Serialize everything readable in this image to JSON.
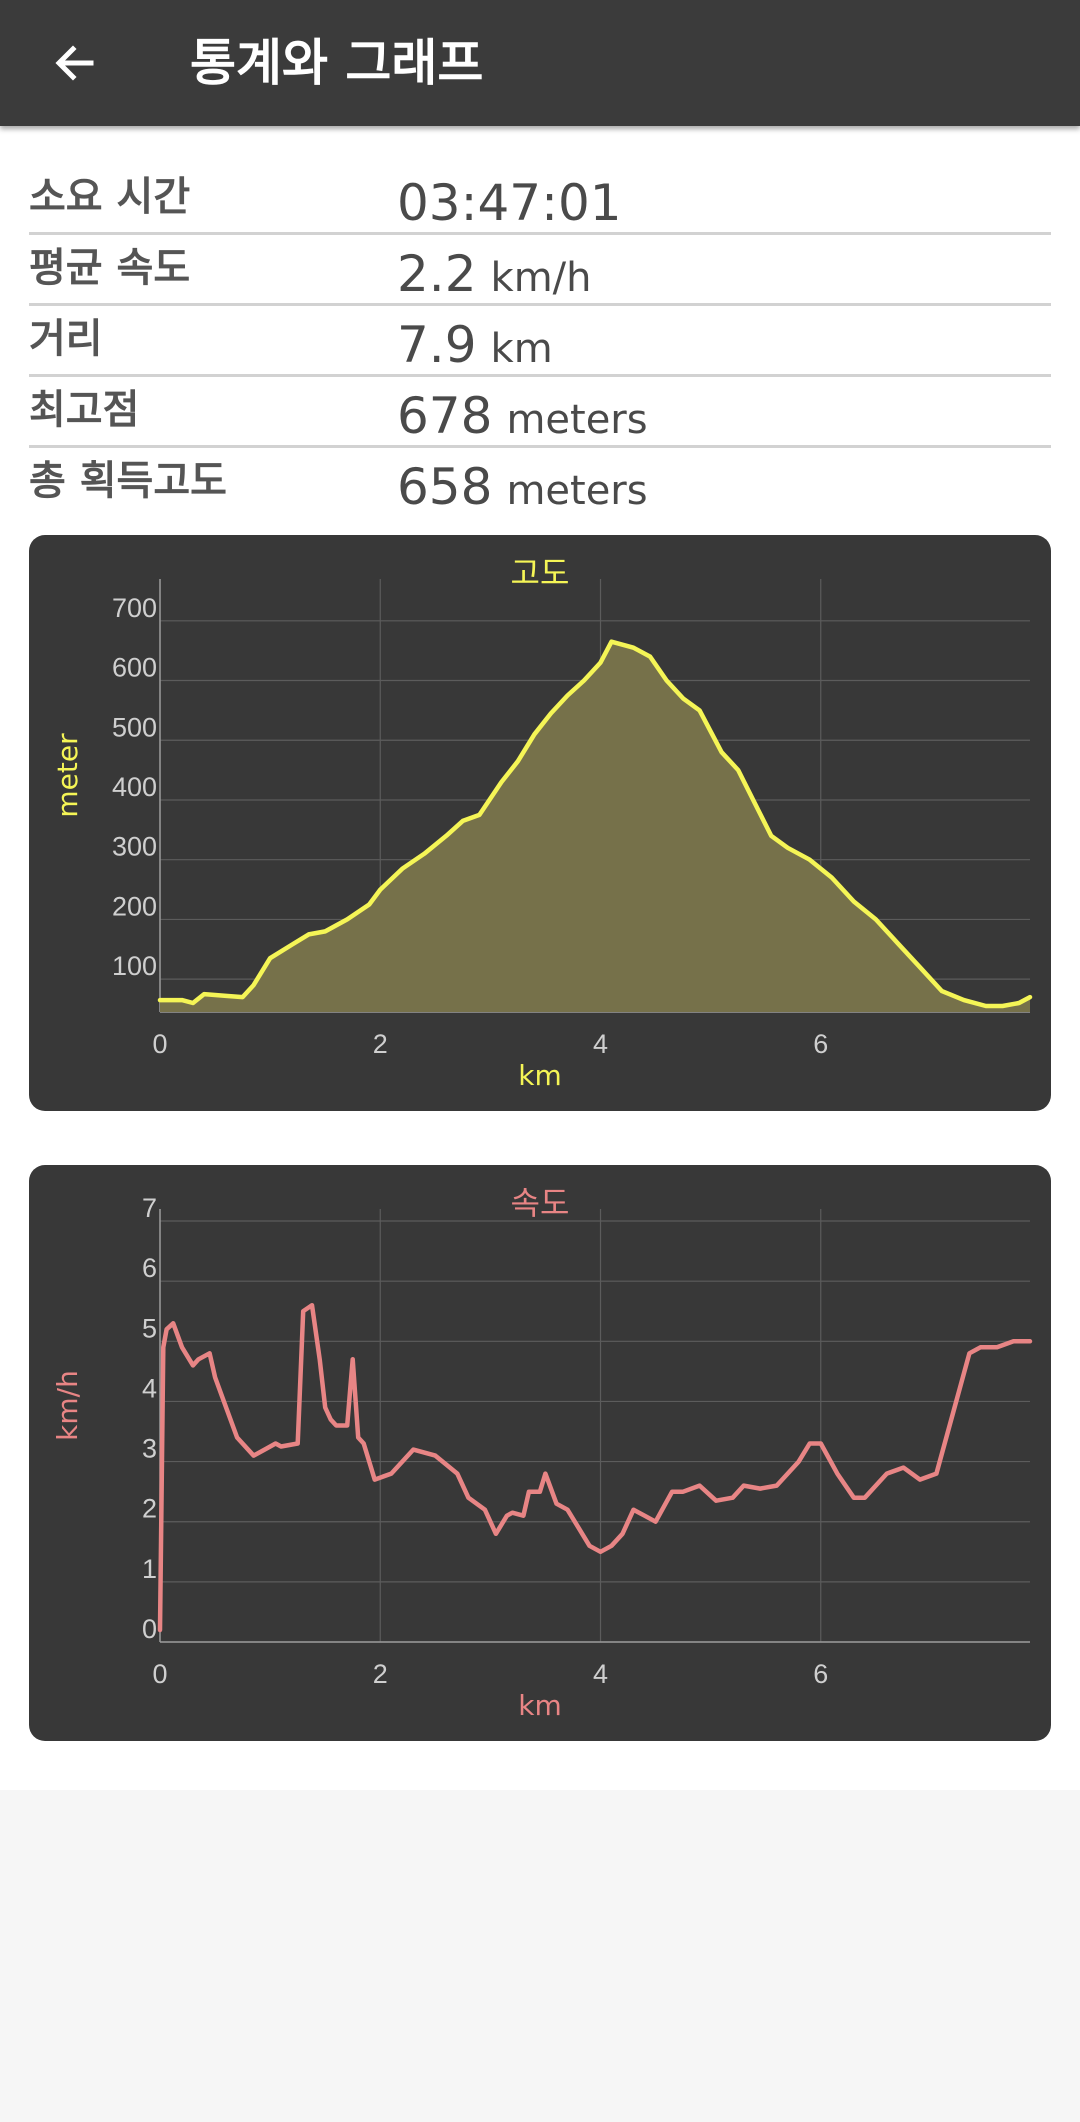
{
  "appbar": {
    "title": "통계와 그래프",
    "back_icon": "arrow-left-icon"
  },
  "stats": [
    {
      "label": "소요 시간",
      "value": "03:47:01",
      "unit": ""
    },
    {
      "label": "평균 속도",
      "value": "2.2",
      "unit": "km/h"
    },
    {
      "label": "거리",
      "value": "7.9",
      "unit": "km"
    },
    {
      "label": "최고점",
      "value": "678",
      "unit": "meters"
    },
    {
      "label": "총 획득고도",
      "value": "658",
      "unit": "meters"
    }
  ],
  "colors": {
    "elevation_accent": "#f5f556",
    "speed_accent": "#e88585",
    "card_bg": "#383838",
    "appbar_bg": "#3b3b3b"
  },
  "chart_data": [
    {
      "type": "area",
      "title": "고도",
      "xlabel": "km",
      "ylabel": "meter",
      "xlim": [
        0,
        7.9
      ],
      "ylim": [
        45,
        770
      ],
      "xticks": [
        0,
        2,
        4,
        6
      ],
      "yticks": [
        100,
        200,
        300,
        400,
        500,
        600,
        700
      ],
      "grid": true,
      "x": [
        0,
        0.2,
        0.3,
        0.4,
        0.6,
        0.75,
        0.85,
        1.0,
        1.2,
        1.35,
        1.5,
        1.7,
        1.9,
        2.0,
        2.2,
        2.4,
        2.6,
        2.75,
        2.9,
        3.1,
        3.25,
        3.4,
        3.55,
        3.7,
        3.85,
        4.0,
        4.1,
        4.2,
        4.3,
        4.45,
        4.6,
        4.75,
        4.9,
        5.1,
        5.25,
        5.4,
        5.55,
        5.7,
        5.9,
        6.1,
        6.3,
        6.5,
        6.7,
        6.9,
        7.1,
        7.3,
        7.5,
        7.65,
        7.8,
        7.9
      ],
      "y": [
        65,
        65,
        60,
        75,
        72,
        70,
        90,
        135,
        158,
        175,
        180,
        200,
        225,
        250,
        285,
        310,
        340,
        365,
        375,
        430,
        465,
        510,
        545,
        575,
        600,
        630,
        665,
        660,
        655,
        640,
        600,
        570,
        550,
        480,
        450,
        395,
        340,
        320,
        300,
        270,
        230,
        200,
        160,
        120,
        80,
        65,
        55,
        55,
        60,
        70
      ]
    },
    {
      "type": "line",
      "title": "속도",
      "xlabel": "km",
      "ylabel": "km/h",
      "xlim": [
        0,
        7.9
      ],
      "ylim": [
        0,
        7.2
      ],
      "xticks": [
        0,
        2,
        4,
        6
      ],
      "yticks": [
        0,
        1,
        2,
        3,
        4,
        5,
        6,
        7
      ],
      "grid": true,
      "x": [
        0,
        0.03,
        0.06,
        0.12,
        0.2,
        0.3,
        0.35,
        0.45,
        0.5,
        0.6,
        0.7,
        0.85,
        0.95,
        1.05,
        1.1,
        1.25,
        1.3,
        1.38,
        1.45,
        1.5,
        1.55,
        1.6,
        1.7,
        1.75,
        1.8,
        1.85,
        1.95,
        2.1,
        2.2,
        2.3,
        2.4,
        2.5,
        2.7,
        2.8,
        2.95,
        3.05,
        3.15,
        3.2,
        3.3,
        3.35,
        3.45,
        3.5,
        3.6,
        3.7,
        3.8,
        3.9,
        4.0,
        4.1,
        4.2,
        4.3,
        4.4,
        4.5,
        4.65,
        4.75,
        4.9,
        5.05,
        5.2,
        5.3,
        5.45,
        5.6,
        5.8,
        5.9,
        6.0,
        6.15,
        6.3,
        6.4,
        6.5,
        6.6,
        6.75,
        6.9,
        7.05,
        7.2,
        7.35,
        7.45,
        7.6,
        7.75,
        7.9
      ],
      "y": [
        0.2,
        4.9,
        5.2,
        5.3,
        4.9,
        4.6,
        4.7,
        4.8,
        4.4,
        3.9,
        3.4,
        3.1,
        3.2,
        3.3,
        3.25,
        3.3,
        5.5,
        5.6,
        4.7,
        3.9,
        3.7,
        3.6,
        3.6,
        4.7,
        3.4,
        3.3,
        2.7,
        2.8,
        3.0,
        3.2,
        3.15,
        3.1,
        2.8,
        2.4,
        2.2,
        1.8,
        2.1,
        2.15,
        2.1,
        2.5,
        2.5,
        2.8,
        2.3,
        2.2,
        1.9,
        1.6,
        1.5,
        1.6,
        1.8,
        2.2,
        2.1,
        2.0,
        2.5,
        2.5,
        2.6,
        2.35,
        2.4,
        2.6,
        2.55,
        2.6,
        3.0,
        3.3,
        3.3,
        2.8,
        2.4,
        2.4,
        2.6,
        2.8,
        2.9,
        2.7,
        2.8,
        3.8,
        4.8,
        4.9,
        4.9,
        5.0,
        5.0
      ]
    }
  ]
}
